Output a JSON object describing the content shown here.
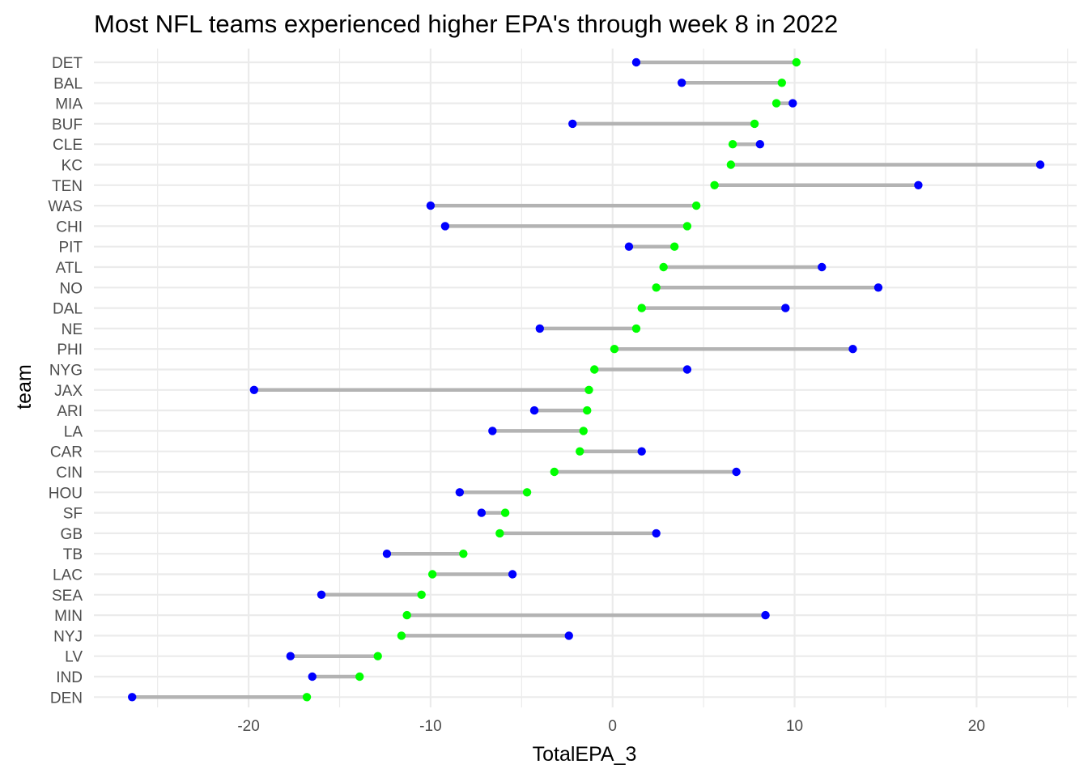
{
  "chart_data": {
    "type": "dumbbell",
    "title": "Most NFL teams experienced higher EPA's through week 8 in 2022",
    "xlabel": "TotalEPA_3",
    "ylabel": "team",
    "xlim": [
      -28.5,
      25.5
    ],
    "x_ticks": [
      -20,
      -10,
      0,
      10,
      20
    ],
    "grid": true,
    "colors": {
      "segment": "#b3b3b3",
      "green_point": "#00ff00",
      "blue_point": "#0000ff",
      "grid": "#ebebeb"
    },
    "teams": [
      {
        "team": "DET",
        "green": 10.1,
        "blue": 1.3
      },
      {
        "team": "BAL",
        "green": 9.3,
        "blue": 3.8
      },
      {
        "team": "MIA",
        "green": 9.0,
        "blue": 9.9
      },
      {
        "team": "BUF",
        "green": 7.8,
        "blue": -2.2
      },
      {
        "team": "CLE",
        "green": 6.6,
        "blue": 8.1
      },
      {
        "team": "KC",
        "green": 6.5,
        "blue": 23.5
      },
      {
        "team": "TEN",
        "green": 5.6,
        "blue": 16.8
      },
      {
        "team": "WAS",
        "green": 4.6,
        "blue": -10.0
      },
      {
        "team": "CHI",
        "green": 4.1,
        "blue": -9.2
      },
      {
        "team": "PIT",
        "green": 3.4,
        "blue": 0.9
      },
      {
        "team": "ATL",
        "green": 2.8,
        "blue": 11.5
      },
      {
        "team": "NO",
        "green": 2.4,
        "blue": 14.6
      },
      {
        "team": "DAL",
        "green": 1.6,
        "blue": 9.5
      },
      {
        "team": "NE",
        "green": 1.3,
        "blue": -4.0
      },
      {
        "team": "PHI",
        "green": 0.1,
        "blue": 13.2
      },
      {
        "team": "NYG",
        "green": -1.0,
        "blue": 4.1
      },
      {
        "team": "JAX",
        "green": -1.3,
        "blue": -19.7
      },
      {
        "team": "ARI",
        "green": -1.4,
        "blue": -4.3
      },
      {
        "team": "LA",
        "green": -1.6,
        "blue": -6.6
      },
      {
        "team": "CAR",
        "green": -1.8,
        "blue": 1.6
      },
      {
        "team": "CIN",
        "green": -3.2,
        "blue": 6.8
      },
      {
        "team": "HOU",
        "green": -4.7,
        "blue": -8.4
      },
      {
        "team": "SF",
        "green": -5.9,
        "blue": -7.2
      },
      {
        "team": "GB",
        "green": -6.2,
        "blue": 2.4
      },
      {
        "team": "TB",
        "green": -8.2,
        "blue": -12.4
      },
      {
        "team": "LAC",
        "green": -9.9,
        "blue": -5.5
      },
      {
        "team": "SEA",
        "green": -10.5,
        "blue": -16.0
      },
      {
        "team": "MIN",
        "green": -11.3,
        "blue": 8.4
      },
      {
        "team": "NYJ",
        "green": -11.6,
        "blue": -2.4
      },
      {
        "team": "LV",
        "green": -12.9,
        "blue": -17.7
      },
      {
        "team": "IND",
        "green": -13.9,
        "blue": -16.5
      },
      {
        "team": "DEN",
        "green": -16.8,
        "blue": -26.4
      }
    ]
  }
}
